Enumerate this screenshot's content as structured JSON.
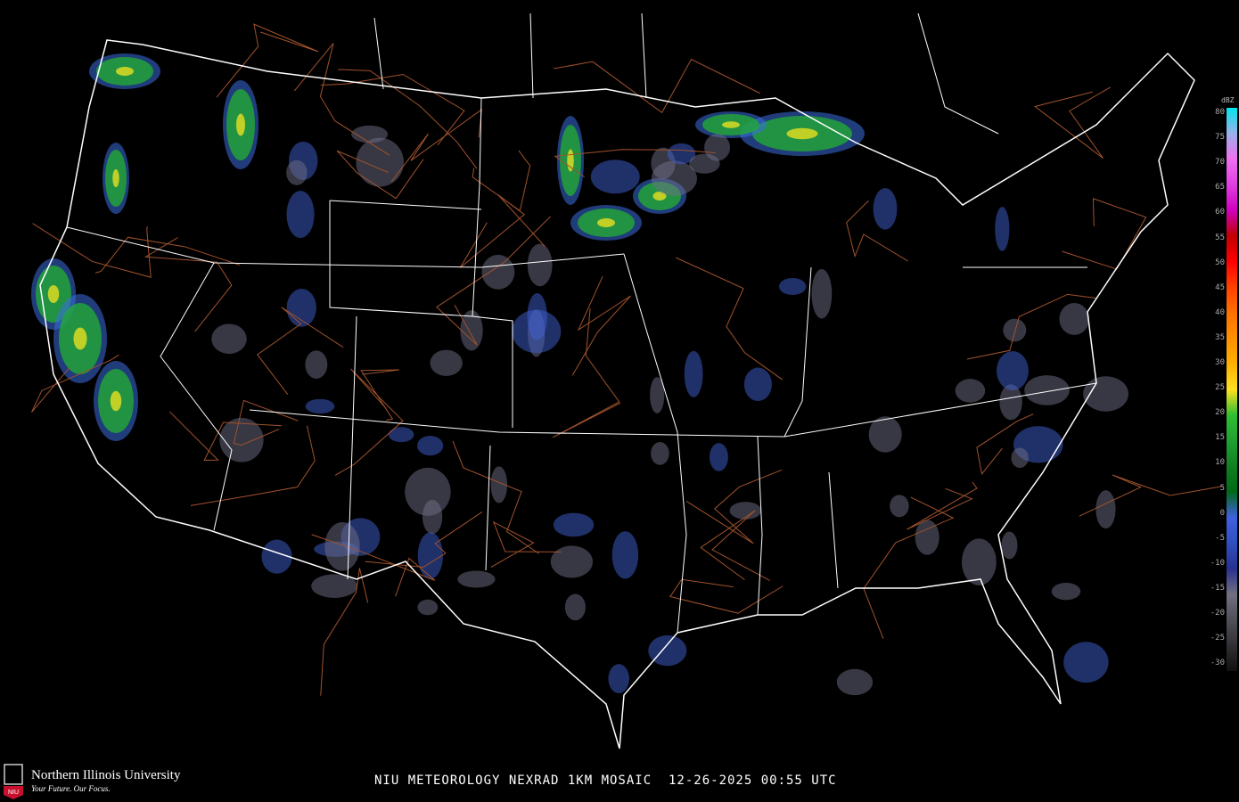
{
  "title": "NIU METEOROLOGY NEXRAD 1KM MOSAIC  12-26-2025 00:55 UTC",
  "logo": {
    "name": "Northern Illinois University",
    "tagline": "Your Future. Our Focus.",
    "badge": "NIU"
  },
  "legend": {
    "unit": "dBZ",
    "ticks": [
      "80",
      "75",
      "70",
      "65",
      "60",
      "55",
      "50",
      "45",
      "40",
      "35",
      "30",
      "25",
      "20",
      "15",
      "10",
      "5",
      "0",
      "-5",
      "-10",
      "-15",
      "-20",
      "-25",
      "-30"
    ],
    "colors": [
      "#00e5ee",
      "#9ab0e8",
      "#f070f0",
      "#e040e0",
      "#d000c0",
      "#c00000",
      "#ff0000",
      "#ff4000",
      "#ff7000",
      "#ff9000",
      "#ffb000",
      "#ffe020",
      "#30c030",
      "#20a030",
      "#108020",
      "#006a18",
      "#4060e0",
      "#3050c0",
      "#283090",
      "#707080",
      "#505058",
      "#303034",
      "#101010"
    ]
  }
}
